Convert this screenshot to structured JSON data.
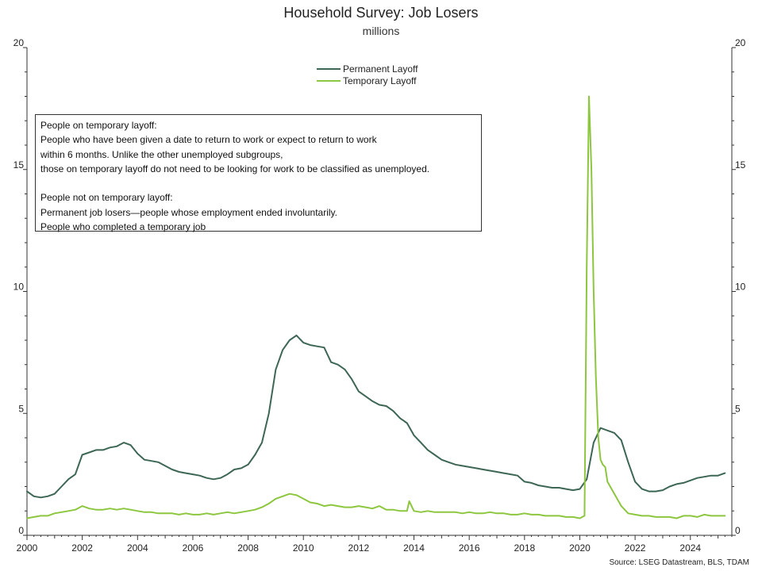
{
  "chart_data": {
    "type": "line",
    "title": "Household Survey: Job Losers",
    "subtitle": "millions",
    "source": "Source: LSEG Datastream, BLS, TDAM",
    "xlim": [
      2000,
      2025.5
    ],
    "ylim": [
      0,
      20
    ],
    "x_ticks": [
      2000,
      2002,
      2004,
      2006,
      2008,
      2010,
      2012,
      2014,
      2016,
      2018,
      2020,
      2022,
      2024
    ],
    "x_tick_labels": [
      "2000",
      "2002",
      "2004",
      "2006",
      "2008",
      "2010",
      "2012",
      "2014",
      "2016",
      "2018",
      "2020",
      "2022",
      "2024"
    ],
    "y_ticks": [
      0,
      5,
      10,
      15,
      20
    ],
    "y_tick_labels": [
      "0",
      "5",
      "10",
      "15",
      "20"
    ],
    "legend_position": "top-center",
    "annotation_lines": [
      "People on temporary layoff:",
      "People who have been given a date to return to work or expect to return to work",
      "within 6 months. Unlike the other unemployed subgroups,",
      "those on temporary layoff do not need to be looking for work to be classified as unemployed.",
      "",
      "People not on temporary layoff:",
      "Permanent job losers—people whose employment ended involuntarily.",
      "People who completed a temporary job"
    ],
    "series": [
      {
        "name": "Permanent Layoff",
        "color": "#3d6655",
        "x": [
          2000.0,
          2000.25,
          2000.5,
          2000.75,
          2001.0,
          2001.25,
          2001.5,
          2001.75,
          2002.0,
          2002.25,
          2002.5,
          2002.75,
          2003.0,
          2003.25,
          2003.5,
          2003.75,
          2004.0,
          2004.25,
          2004.5,
          2004.75,
          2005.0,
          2005.25,
          2005.5,
          2005.75,
          2006.0,
          2006.25,
          2006.5,
          2006.75,
          2007.0,
          2007.25,
          2007.5,
          2007.75,
          2008.0,
          2008.25,
          2008.5,
          2008.75,
          2009.0,
          2009.25,
          2009.5,
          2009.75,
          2010.0,
          2010.25,
          2010.5,
          2010.75,
          2011.0,
          2011.25,
          2011.5,
          2011.75,
          2012.0,
          2012.25,
          2012.5,
          2012.75,
          2013.0,
          2013.25,
          2013.5,
          2013.75,
          2014.0,
          2014.25,
          2014.5,
          2014.75,
          2015.0,
          2015.25,
          2015.5,
          2015.75,
          2016.0,
          2016.25,
          2016.5,
          2016.75,
          2017.0,
          2017.25,
          2017.5,
          2017.75,
          2018.0,
          2018.25,
          2018.5,
          2018.75,
          2019.0,
          2019.25,
          2019.5,
          2019.75,
          2020.0,
          2020.25,
          2020.5,
          2020.75,
          2021.0,
          2021.25,
          2021.5,
          2021.75,
          2022.0,
          2022.25,
          2022.5,
          2022.75,
          2023.0,
          2023.25,
          2023.5,
          2023.75,
          2024.0,
          2024.25,
          2024.5,
          2024.75,
          2025.0,
          2025.25
        ],
        "values": [
          1.8,
          1.6,
          1.55,
          1.6,
          1.7,
          2.0,
          2.3,
          2.5,
          3.3,
          3.4,
          3.5,
          3.5,
          3.6,
          3.65,
          3.8,
          3.7,
          3.35,
          3.1,
          3.05,
          3.0,
          2.85,
          2.7,
          2.6,
          2.55,
          2.5,
          2.45,
          2.35,
          2.3,
          2.35,
          2.5,
          2.7,
          2.75,
          2.9,
          3.3,
          3.8,
          5.0,
          6.8,
          7.6,
          8.0,
          8.2,
          7.9,
          7.8,
          7.75,
          7.7,
          7.1,
          7.0,
          6.8,
          6.4,
          5.9,
          5.7,
          5.5,
          5.35,
          5.3,
          5.1,
          4.8,
          4.6,
          4.1,
          3.8,
          3.5,
          3.3,
          3.1,
          3.0,
          2.9,
          2.85,
          2.8,
          2.75,
          2.7,
          2.65,
          2.6,
          2.55,
          2.5,
          2.45,
          2.2,
          2.15,
          2.05,
          2.0,
          1.95,
          1.95,
          1.9,
          1.85,
          1.9,
          2.3,
          3.8,
          4.4,
          4.3,
          4.2,
          3.9,
          3.0,
          2.2,
          1.9,
          1.8,
          1.8,
          1.85,
          2.0,
          2.1,
          2.15,
          2.25,
          2.35,
          2.4,
          2.45,
          2.45,
          2.55
        ]
      },
      {
        "name": "Temporary Layoff",
        "color": "#8dc63f",
        "x": [
          2000.0,
          2000.25,
          2000.5,
          2000.75,
          2001.0,
          2001.25,
          2001.5,
          2001.75,
          2002.0,
          2002.25,
          2002.5,
          2002.75,
          2003.0,
          2003.25,
          2003.5,
          2003.75,
          2004.0,
          2004.25,
          2004.5,
          2004.75,
          2005.0,
          2005.25,
          2005.5,
          2005.75,
          2006.0,
          2006.25,
          2006.5,
          2006.75,
          2007.0,
          2007.25,
          2007.5,
          2007.75,
          2008.0,
          2008.25,
          2008.5,
          2008.75,
          2009.0,
          2009.25,
          2009.5,
          2009.75,
          2010.0,
          2010.25,
          2010.5,
          2010.75,
          2011.0,
          2011.25,
          2011.5,
          2011.75,
          2012.0,
          2012.25,
          2012.5,
          2012.75,
          2013.0,
          2013.25,
          2013.5,
          2013.75,
          2013.83,
          2014.0,
          2014.25,
          2014.5,
          2014.75,
          2015.0,
          2015.25,
          2015.5,
          2015.75,
          2016.0,
          2016.25,
          2016.5,
          2016.75,
          2017.0,
          2017.25,
          2017.5,
          2017.75,
          2018.0,
          2018.25,
          2018.5,
          2018.75,
          2019.0,
          2019.25,
          2019.5,
          2019.75,
          2020.0,
          2020.17,
          2020.25,
          2020.33,
          2020.42,
          2020.5,
          2020.58,
          2020.67,
          2020.75,
          2020.83,
          2020.92,
          2021.0,
          2021.25,
          2021.5,
          2021.75,
          2022.0,
          2022.25,
          2022.5,
          2022.75,
          2023.0,
          2023.25,
          2023.5,
          2023.75,
          2024.0,
          2024.25,
          2024.5,
          2024.75,
          2025.0,
          2025.25
        ],
        "values": [
          0.7,
          0.75,
          0.8,
          0.8,
          0.9,
          0.95,
          1.0,
          1.05,
          1.2,
          1.1,
          1.05,
          1.05,
          1.1,
          1.05,
          1.1,
          1.05,
          1.0,
          0.95,
          0.95,
          0.9,
          0.9,
          0.9,
          0.85,
          0.9,
          0.85,
          0.85,
          0.9,
          0.85,
          0.9,
          0.95,
          0.9,
          0.95,
          1.0,
          1.05,
          1.15,
          1.3,
          1.5,
          1.6,
          1.7,
          1.65,
          1.5,
          1.35,
          1.3,
          1.2,
          1.25,
          1.2,
          1.15,
          1.15,
          1.2,
          1.15,
          1.1,
          1.2,
          1.05,
          1.05,
          1.0,
          1.0,
          1.4,
          1.0,
          0.95,
          1.0,
          0.95,
          0.95,
          0.95,
          0.95,
          0.9,
          0.95,
          0.9,
          0.9,
          0.95,
          0.9,
          0.9,
          0.85,
          0.85,
          0.9,
          0.85,
          0.85,
          0.8,
          0.8,
          0.8,
          0.75,
          0.75,
          0.7,
          0.8,
          11.0,
          18.0,
          15.0,
          10.0,
          6.5,
          4.0,
          3.1,
          2.9,
          2.8,
          2.2,
          1.7,
          1.2,
          0.9,
          0.85,
          0.8,
          0.8,
          0.75,
          0.75,
          0.75,
          0.7,
          0.8,
          0.8,
          0.75,
          0.85,
          0.8,
          0.8,
          0.8
        ]
      }
    ]
  }
}
